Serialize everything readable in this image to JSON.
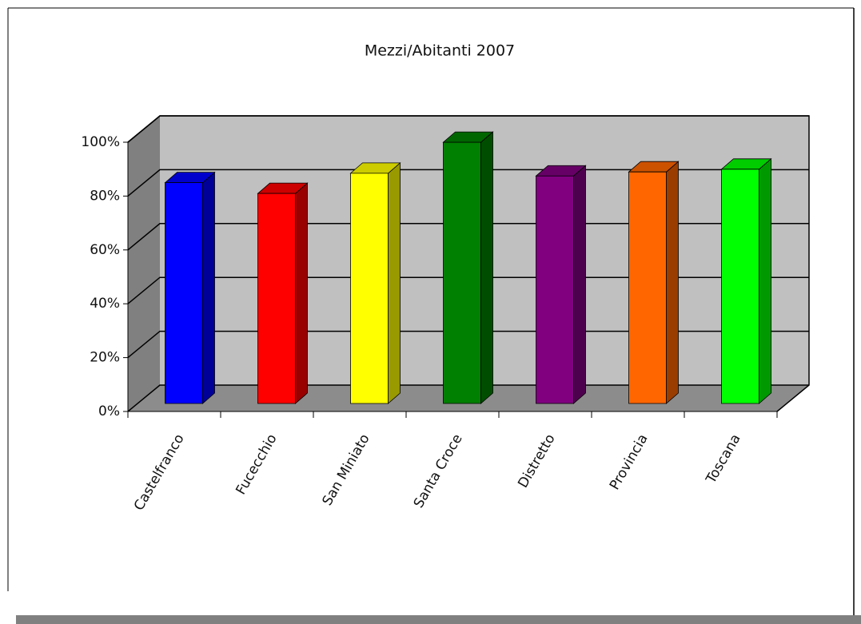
{
  "chart_data": {
    "type": "bar3d",
    "title": "Mezzi/Abitanti 2007",
    "categories": [
      "Castelfranco",
      "Fucecchio",
      "San Miniato",
      "Santa Croce",
      "Distretto",
      "Provincia",
      "Toscana"
    ],
    "values": [
      82,
      78,
      85.5,
      97,
      84.5,
      86,
      87
    ],
    "colors": [
      "#0000ff",
      "#ff0000",
      "#ffff00",
      "#008000",
      "#800080",
      "#ff6600",
      "#00ff00"
    ],
    "ylim": [
      0,
      100
    ],
    "yticks": [
      {
        "value": 0,
        "label": "0%"
      },
      {
        "value": 20,
        "label": "20%"
      },
      {
        "value": 40,
        "label": "40%"
      },
      {
        "value": 60,
        "label": "60%"
      },
      {
        "value": 80,
        "label": "80%"
      },
      {
        "value": 100,
        "label": "100%"
      }
    ],
    "grid": true
  }
}
